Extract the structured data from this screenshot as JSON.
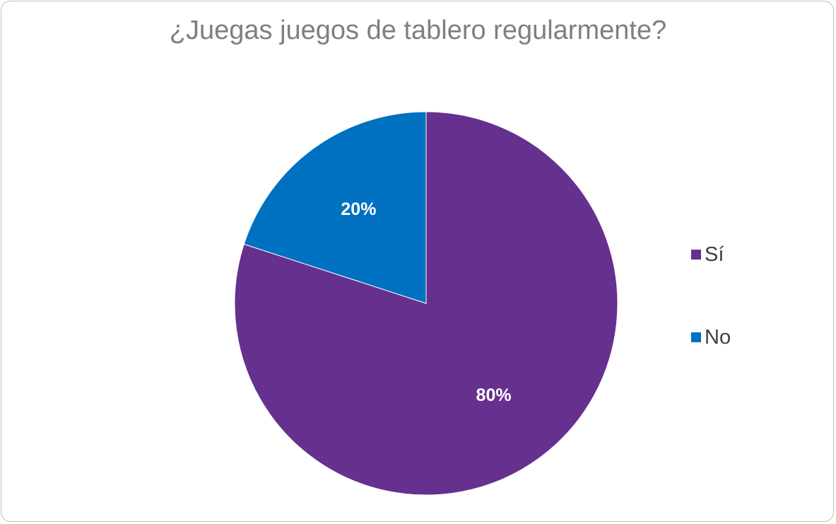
{
  "chart_data": {
    "type": "pie",
    "title": "¿Juegas juegos de tablero regularmente?",
    "categories": [
      "Sí",
      "No"
    ],
    "values": [
      80,
      20
    ],
    "data_labels": [
      "80%",
      "20%"
    ],
    "colors": [
      "#66308f",
      "#0070c0"
    ],
    "start_angle_deg": 0,
    "direction": "clockwise",
    "legend_position": "right"
  }
}
